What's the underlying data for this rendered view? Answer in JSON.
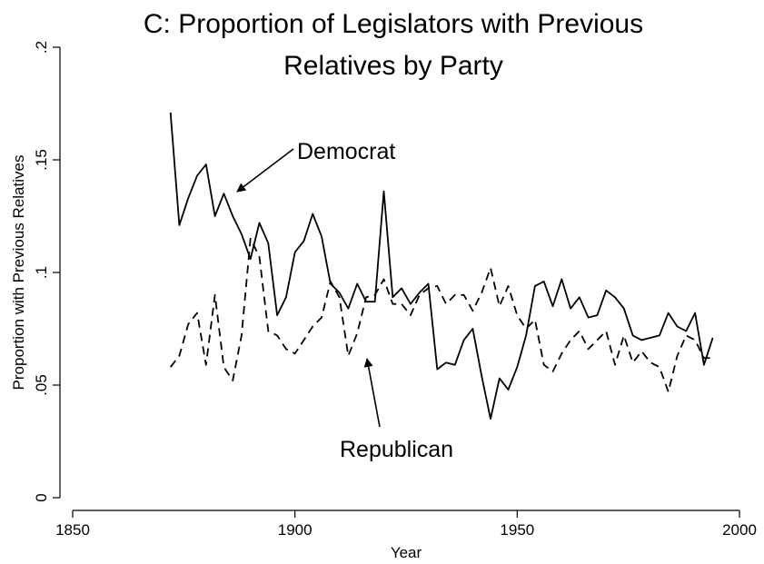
{
  "chart_data": {
    "type": "line",
    "title_line1": "C: Proportion of Legislators with Previous",
    "title_line2": "Relatives by Party",
    "xlabel": "Year",
    "ylabel": "Proportion with Previous Relatives",
    "xlim": [
      1850,
      2000
    ],
    "ylim": [
      0,
      0.2
    ],
    "xticks": [
      1850,
      1900,
      1950,
      2000
    ],
    "xtick_labels": [
      "1850",
      "1900",
      "1950",
      "2000"
    ],
    "yticks": [
      0,
      0.05,
      0.1,
      0.15,
      0.2
    ],
    "ytick_labels": [
      "0",
      ".05",
      ".1",
      ".15",
      ".2"
    ],
    "grid": false,
    "annotations": [
      {
        "text": "Democrat",
        "series": "Democrat"
      },
      {
        "text": "Republican",
        "series": "Republican"
      }
    ],
    "series": [
      {
        "name": "Democrat",
        "style": "solid",
        "x": [
          1872,
          1874,
          1876,
          1878,
          1880,
          1882,
          1884,
          1886,
          1888,
          1890,
          1892,
          1894,
          1896,
          1898,
          1900,
          1902,
          1904,
          1906,
          1908,
          1910,
          1912,
          1914,
          1916,
          1918,
          1920,
          1922,
          1924,
          1926,
          1928,
          1930,
          1932,
          1934,
          1936,
          1938,
          1940,
          1942,
          1944,
          1946,
          1948,
          1950,
          1952,
          1954,
          1956,
          1958,
          1960,
          1962,
          1964,
          1966,
          1968,
          1970,
          1972,
          1974,
          1976,
          1978,
          1980,
          1982,
          1984,
          1986,
          1988,
          1990,
          1992,
          1994
        ],
        "y": [
          0.171,
          0.121,
          0.133,
          0.143,
          0.148,
          0.125,
          0.135,
          0.125,
          0.117,
          0.106,
          0.122,
          0.113,
          0.081,
          0.089,
          0.109,
          0.114,
          0.126,
          0.116,
          0.095,
          0.091,
          0.084,
          0.095,
          0.087,
          0.087,
          0.136,
          0.089,
          0.093,
          0.086,
          0.091,
          0.095,
          0.057,
          0.06,
          0.059,
          0.07,
          0.075,
          0.054,
          0.035,
          0.053,
          0.048,
          0.058,
          0.072,
          0.094,
          0.096,
          0.085,
          0.097,
          0.084,
          0.089,
          0.08,
          0.081,
          0.092,
          0.089,
          0.084,
          0.072,
          0.07,
          0.071,
          0.072,
          0.082,
          0.076,
          0.074,
          0.082,
          0.059,
          0.071
        ]
      },
      {
        "name": "Republican",
        "style": "dashed",
        "x": [
          1872,
          1874,
          1876,
          1878,
          1880,
          1882,
          1884,
          1886,
          1888,
          1890,
          1892,
          1894,
          1896,
          1898,
          1900,
          1902,
          1904,
          1906,
          1908,
          1910,
          1912,
          1914,
          1916,
          1918,
          1920,
          1922,
          1924,
          1926,
          1928,
          1930,
          1932,
          1934,
          1936,
          1938,
          1940,
          1942,
          1944,
          1946,
          1948,
          1950,
          1952,
          1954,
          1956,
          1958,
          1960,
          1962,
          1964,
          1966,
          1968,
          1970,
          1972,
          1974,
          1976,
          1978,
          1980,
          1982,
          1984,
          1986,
          1988,
          1990,
          1992,
          1994
        ],
        "y": [
          0.058,
          0.063,
          0.077,
          0.082,
          0.059,
          0.09,
          0.058,
          0.052,
          0.072,
          0.115,
          0.107,
          0.074,
          0.072,
          0.066,
          0.064,
          0.07,
          0.076,
          0.08,
          0.096,
          0.089,
          0.063,
          0.073,
          0.089,
          0.09,
          0.097,
          0.086,
          0.086,
          0.081,
          0.09,
          0.093,
          0.094,
          0.086,
          0.09,
          0.09,
          0.083,
          0.091,
          0.102,
          0.085,
          0.094,
          0.081,
          0.075,
          0.079,
          0.059,
          0.056,
          0.064,
          0.07,
          0.074,
          0.066,
          0.07,
          0.074,
          0.059,
          0.072,
          0.06,
          0.065,
          0.06,
          0.058,
          0.047,
          0.063,
          0.072,
          0.07,
          0.062,
          0.062
        ]
      }
    ]
  }
}
